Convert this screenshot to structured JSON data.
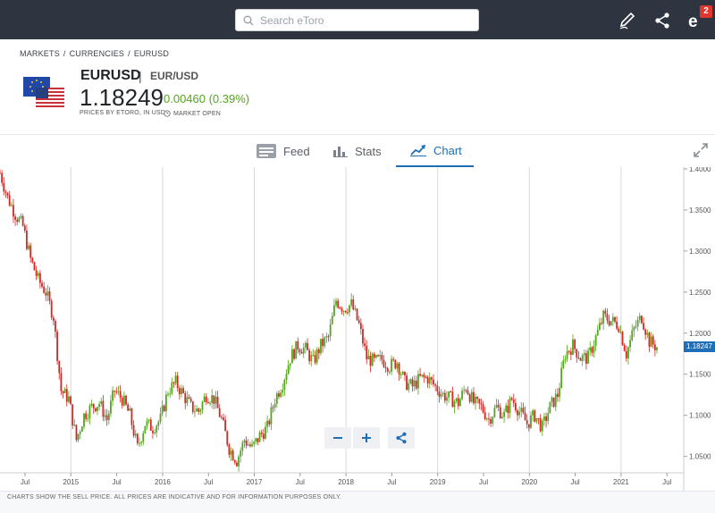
{
  "header": {
    "search_placeholder": "Search eToro",
    "notification_count": "2"
  },
  "breadcrumb": [
    "MARKETS",
    "CURRENCIES",
    "EURUSD"
  ],
  "instrument": {
    "symbol": "EURUSD",
    "pair": "EUR/USD",
    "price": "1.18249",
    "change": "0.00460 (0.39%)",
    "price_source": "PRICES BY ETORO, IN USD",
    "market_status": "MARKET OPEN"
  },
  "tabs": [
    {
      "label": "Feed",
      "icon": "feed-icon",
      "active": false
    },
    {
      "label": "Stats",
      "icon": "stats-icon",
      "active": false
    },
    {
      "label": "Chart",
      "icon": "chart-icon",
      "active": true
    }
  ],
  "footer_note": "CHARTS SHOW THE SELL PRICE. ALL PRICES ARE INDICATIVE AND FOR INFORMATION PURPOSES ONLY.",
  "colors": {
    "up": "#53a51d",
    "down": "#cf2a27",
    "accent": "#1d6fb8"
  },
  "chart_data": {
    "type": "candlestick",
    "current_price_label": "1.18247",
    "y_ticks": [
      "1.4000",
      "1.3500",
      "1.3000",
      "1.2500",
      "1.2000",
      "1.1500",
      "1.1000",
      "1.0500"
    ],
    "y_range": [
      1.03,
      1.4
    ],
    "x_ticks": [
      "Jul",
      "2015",
      "Jul",
      "2016",
      "Jul",
      "2017",
      "Jul",
      "2018",
      "Jul",
      "2019",
      "Jul",
      "2020",
      "Jul",
      "2021",
      "Jul"
    ],
    "price_path": [
      [
        "2014-05",
        1.395
      ],
      [
        "2014-06",
        1.365
      ],
      [
        "2014-07",
        1.345
      ],
      [
        "2014-08",
        1.33
      ],
      [
        "2014-09",
        1.29
      ],
      [
        "2014-10",
        1.265
      ],
      [
        "2014-11",
        1.25
      ],
      [
        "2014-12",
        1.22
      ],
      [
        "2015-01",
        1.13
      ],
      [
        "2015-02",
        1.12
      ],
      [
        "2015-03",
        1.07
      ],
      [
        "2015-04",
        1.1
      ],
      [
        "2015-05",
        1.11
      ],
      [
        "2015-06",
        1.115
      ],
      [
        "2015-07",
        1.095
      ],
      [
        "2015-08",
        1.13
      ],
      [
        "2015-09",
        1.12
      ],
      [
        "2015-10",
        1.1
      ],
      [
        "2015-11",
        1.06
      ],
      [
        "2015-12",
        1.09
      ],
      [
        "2016-01",
        1.085
      ],
      [
        "2016-02",
        1.095
      ],
      [
        "2016-03",
        1.13
      ],
      [
        "2016-04",
        1.14
      ],
      [
        "2016-05",
        1.125
      ],
      [
        "2016-06",
        1.11
      ],
      [
        "2016-07",
        1.105
      ],
      [
        "2016-08",
        1.125
      ],
      [
        "2016-09",
        1.12
      ],
      [
        "2016-10",
        1.095
      ],
      [
        "2016-11",
        1.06
      ],
      [
        "2016-12",
        1.045
      ],
      [
        "2017-01",
        1.07
      ],
      [
        "2017-02",
        1.06
      ],
      [
        "2017-03",
        1.075
      ],
      [
        "2017-04",
        1.085
      ],
      [
        "2017-05",
        1.12
      ],
      [
        "2017-06",
        1.14
      ],
      [
        "2017-07",
        1.17
      ],
      [
        "2017-08",
        1.185
      ],
      [
        "2017-09",
        1.18
      ],
      [
        "2017-10",
        1.165
      ],
      [
        "2017-11",
        1.185
      ],
      [
        "2017-12",
        1.195
      ],
      [
        "2018-01",
        1.24
      ],
      [
        "2018-02",
        1.23
      ],
      [
        "2018-03",
        1.235
      ],
      [
        "2018-04",
        1.21
      ],
      [
        "2018-05",
        1.17
      ],
      [
        "2018-06",
        1.165
      ],
      [
        "2018-07",
        1.168
      ],
      [
        "2018-08",
        1.16
      ],
      [
        "2018-09",
        1.165
      ],
      [
        "2018-10",
        1.14
      ],
      [
        "2018-11",
        1.135
      ],
      [
        "2018-12",
        1.145
      ],
      [
        "2019-01",
        1.145
      ],
      [
        "2019-02",
        1.135
      ],
      [
        "2019-03",
        1.125
      ],
      [
        "2019-04",
        1.12
      ],
      [
        "2019-05",
        1.115
      ],
      [
        "2019-06",
        1.135
      ],
      [
        "2019-07",
        1.115
      ],
      [
        "2019-08",
        1.11
      ],
      [
        "2019-09",
        1.095
      ],
      [
        "2019-10",
        1.11
      ],
      [
        "2019-11",
        1.1
      ],
      [
        "2019-12",
        1.12
      ],
      [
        "2020-01",
        1.105
      ],
      [
        "2020-02",
        1.09
      ],
      [
        "2020-03",
        1.1
      ],
      [
        "2020-04",
        1.085
      ],
      [
        "2020-05",
        1.11
      ],
      [
        "2020-06",
        1.125
      ],
      [
        "2020-07",
        1.175
      ],
      [
        "2020-08",
        1.185
      ],
      [
        "2020-09",
        1.17
      ],
      [
        "2020-10",
        1.17
      ],
      [
        "2020-11",
        1.195
      ],
      [
        "2020-12",
        1.22
      ],
      [
        "2021-01",
        1.215
      ],
      [
        "2021-02",
        1.21
      ],
      [
        "2021-03",
        1.175
      ],
      [
        "2021-04",
        1.205
      ],
      [
        "2021-05",
        1.22
      ],
      [
        "2021-06",
        1.19
      ],
      [
        "2021-07",
        1.183
      ]
    ]
  }
}
